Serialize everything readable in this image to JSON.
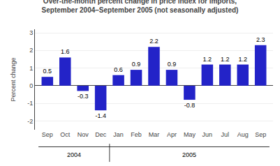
{
  "chart_data": {
    "type": "bar",
    "title": "Over-the-month percent change in price index for imports,\nSeptember 2004–September 2005 (not seasonally adjusted)",
    "categories": [
      "Sep",
      "Oct",
      "Nov",
      "Dec",
      "Jan",
      "Feb",
      "Mar",
      "Apr",
      "May",
      "Jun",
      "Jul",
      "Aug",
      "Sep"
    ],
    "values": [
      0.5,
      1.6,
      -0.3,
      -1.4,
      0.6,
      0.9,
      2.2,
      0.9,
      -0.8,
      1.2,
      1.2,
      1.2,
      2.3
    ],
    "color": "#2323c8",
    "ylabel": "Percent change",
    "ylim": [
      -2.5,
      3.2
    ],
    "yticks": [
      -2,
      -1,
      0,
      1,
      2,
      3
    ],
    "grid": true,
    "data_labels": true,
    "annotations": [
      "2004",
      "2005"
    ]
  }
}
